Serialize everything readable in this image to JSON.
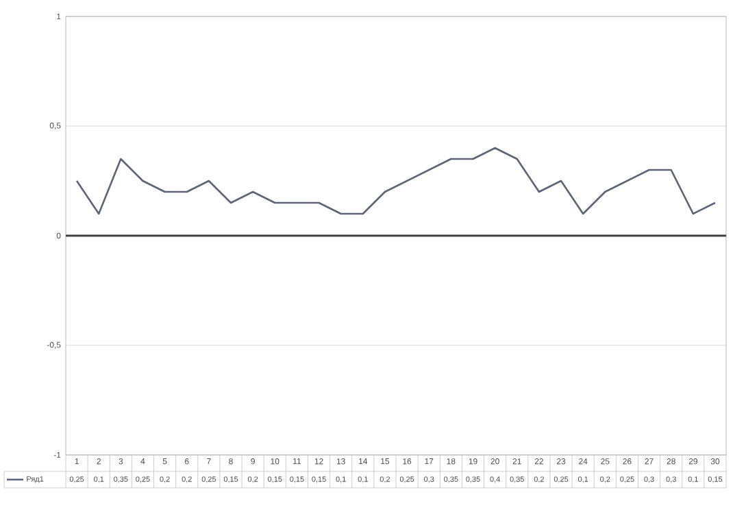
{
  "chart_data": {
    "type": "line",
    "categories": [
      "1",
      "2",
      "3",
      "4",
      "5",
      "6",
      "7",
      "8",
      "9",
      "10",
      "11",
      "12",
      "13",
      "14",
      "15",
      "16",
      "17",
      "18",
      "19",
      "20",
      "21",
      "22",
      "23",
      "24",
      "25",
      "26",
      "27",
      "28",
      "29",
      "30"
    ],
    "series": [
      {
        "name": "Ряд1",
        "color": "#5b6577",
        "values": [
          0.25,
          0.1,
          0.35,
          0.25,
          0.2,
          0.2,
          0.25,
          0.15,
          0.2,
          0.15,
          0.15,
          0.15,
          0.1,
          0.1,
          0.2,
          0.25,
          0.3,
          0.35,
          0.35,
          0.4,
          0.35,
          0.2,
          0.25,
          0.1,
          0.2,
          0.25,
          0.3,
          0.3,
          0.1,
          0.15
        ],
        "value_labels": [
          "0,25",
          "0,1",
          "0,35",
          "0,25",
          "0,2",
          "0,2",
          "0,25",
          "0,15",
          "0,2",
          "0,15",
          "0,15",
          "0,15",
          "0,1",
          "0,1",
          "0,2",
          "0,25",
          "0,3",
          "0,35",
          "0,35",
          "0,4",
          "0,35",
          "0,2",
          "0,25",
          "0,1",
          "0,2",
          "0,25",
          "0,3",
          "0,3",
          "0,1",
          "0,15"
        ]
      }
    ],
    "ylim": [
      -1,
      1
    ],
    "yticks": [
      -1,
      {
        "value": -0.5,
        "label": "-0,5"
      },
      0,
      {
        "value": 0.5,
        "label": "0,5"
      },
      1
    ],
    "grid": "y",
    "legend": "bottom",
    "marker": "none"
  }
}
